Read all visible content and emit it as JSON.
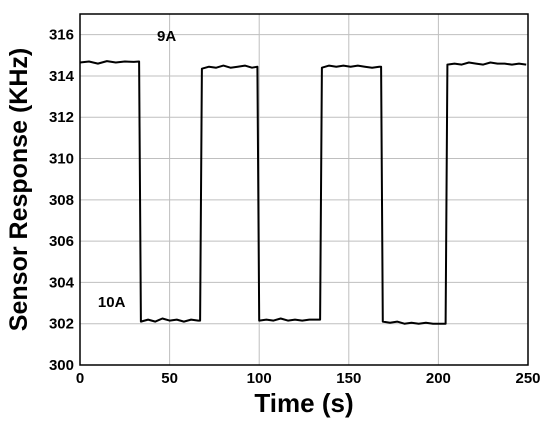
{
  "chart_data": {
    "type": "line",
    "title": "",
    "xlabel": "Time (s)",
    "ylabel": "Sensor Response (KHz)",
    "xlim": [
      0,
      250
    ],
    "ylim": [
      300,
      317
    ],
    "x_ticks": [
      0,
      50,
      100,
      150,
      200,
      250
    ],
    "y_ticks": [
      300,
      302,
      304,
      306,
      308,
      310,
      312,
      314,
      316
    ],
    "grid": true,
    "legend": "none",
    "series": [
      {
        "color": "#000000",
        "points": [
          [
            0,
            314.65
          ],
          [
            5,
            314.7
          ],
          [
            10,
            314.6
          ],
          [
            15,
            314.72
          ],
          [
            20,
            314.65
          ],
          [
            25,
            314.7
          ],
          [
            30,
            314.68
          ],
          [
            33,
            314.7
          ],
          [
            34,
            302.1
          ],
          [
            38,
            302.2
          ],
          [
            42,
            302.1
          ],
          [
            46,
            302.25
          ],
          [
            50,
            302.15
          ],
          [
            54,
            302.2
          ],
          [
            58,
            302.1
          ],
          [
            62,
            302.2
          ],
          [
            66,
            302.15
          ],
          [
            67,
            302.15
          ],
          [
            68,
            314.35
          ],
          [
            72,
            314.45
          ],
          [
            76,
            314.4
          ],
          [
            80,
            314.5
          ],
          [
            84,
            314.4
          ],
          [
            88,
            314.45
          ],
          [
            92,
            314.5
          ],
          [
            96,
            314.4
          ],
          [
            99,
            314.45
          ],
          [
            100,
            302.15
          ],
          [
            104,
            302.2
          ],
          [
            108,
            302.15
          ],
          [
            112,
            302.25
          ],
          [
            116,
            302.15
          ],
          [
            120,
            302.2
          ],
          [
            124,
            302.15
          ],
          [
            128,
            302.2
          ],
          [
            132,
            302.2
          ],
          [
            134,
            302.2
          ],
          [
            135,
            314.4
          ],
          [
            139,
            314.5
          ],
          [
            143,
            314.45
          ],
          [
            147,
            314.5
          ],
          [
            151,
            314.45
          ],
          [
            155,
            314.5
          ],
          [
            159,
            314.45
          ],
          [
            163,
            314.4
          ],
          [
            167,
            314.45
          ],
          [
            168,
            314.45
          ],
          [
            169,
            302.1
          ],
          [
            173,
            302.05
          ],
          [
            177,
            302.1
          ],
          [
            181,
            302.0
          ],
          [
            185,
            302.05
          ],
          [
            189,
            302.0
          ],
          [
            193,
            302.05
          ],
          [
            197,
            302.0
          ],
          [
            201,
            302.0
          ],
          [
            204,
            302.0
          ],
          [
            205,
            314.55
          ],
          [
            209,
            314.6
          ],
          [
            213,
            314.55
          ],
          [
            217,
            314.65
          ],
          [
            221,
            314.6
          ],
          [
            225,
            314.55
          ],
          [
            229,
            314.65
          ],
          [
            233,
            314.6
          ],
          [
            237,
            314.6
          ],
          [
            241,
            314.55
          ],
          [
            245,
            314.6
          ],
          [
            249,
            314.55
          ]
        ]
      }
    ],
    "annotations": [
      {
        "text": "9A",
        "x": 43,
        "y": 315.7
      },
      {
        "text": "10A",
        "x": 10,
        "y": 302.8
      }
    ]
  }
}
